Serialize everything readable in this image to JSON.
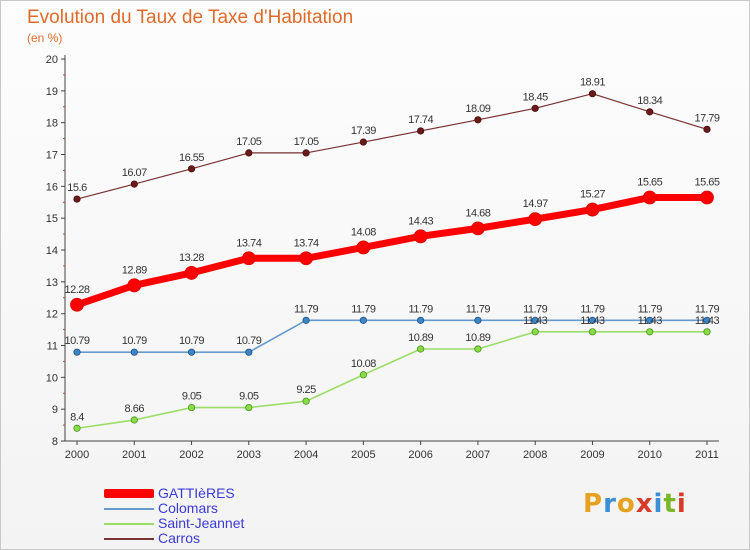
{
  "chart_data": {
    "type": "line",
    "title": "Evolution du Taux de Taxe d'Habitation",
    "subtitle": "(en %)",
    "xlabel": "",
    "ylabel": "",
    "categories": [
      "2000",
      "2001",
      "2002",
      "2003",
      "2004",
      "2005",
      "2006",
      "2007",
      "2008",
      "2009",
      "2010",
      "2011"
    ],
    "ylim": [
      8,
      20
    ],
    "yticks": [
      "8",
      "9",
      "10",
      "11",
      "12",
      "13",
      "14",
      "15",
      "16",
      "17",
      "18",
      "19",
      "20"
    ],
    "grid": false,
    "legend_position": "bottom-left",
    "series": [
      {
        "name": "GATTIèRES",
        "color": "#ff0000",
        "values": [
          12.28,
          12.89,
          13.28,
          13.74,
          13.74,
          14.08,
          14.43,
          14.68,
          14.97,
          15.27,
          15.65,
          15.65
        ],
        "labels": [
          "12.28",
          "12.89",
          "13.28",
          "13.74",
          "13.74",
          "14.08",
          "14.43",
          "14.68",
          "14.97",
          "15.27",
          "15.65",
          "15.65"
        ]
      },
      {
        "name": "Colomars",
        "color": "#6699cc",
        "values": [
          10.79,
          10.79,
          10.79,
          10.79,
          11.79,
          11.79,
          11.79,
          11.79,
          11.79,
          11.79,
          11.79,
          11.79
        ],
        "labels": [
          "10.79",
          "10.79",
          "10.79",
          "10.79",
          "11.79",
          "11.79",
          "11.79",
          "11.79",
          "11.79",
          "11.79",
          "11.79",
          "11.79"
        ]
      },
      {
        "name": "Saint-Jeannet",
        "color": "#99dd66",
        "values": [
          8.4,
          8.66,
          9.05,
          9.05,
          9.25,
          10.08,
          10.89,
          10.89,
          11.43,
          11.43,
          11.43,
          11.43
        ],
        "labels": [
          "8.4",
          "8.66",
          "9.05",
          "9.05",
          "9.25",
          "10.08",
          "10.89",
          "10.89",
          "11.43",
          "11.43",
          "11.43",
          "11.43"
        ]
      },
      {
        "name": "Carros",
        "color": "#7a3333",
        "values": [
          15.6,
          16.07,
          16.55,
          17.05,
          17.05,
          17.39,
          17.74,
          18.09,
          18.45,
          18.91,
          18.34,
          17.79
        ],
        "labels": [
          "15.6",
          "16.07",
          "16.55",
          "17.05",
          "17.05",
          "17.39",
          "17.74",
          "18.09",
          "18.45",
          "18.91",
          "18.34",
          "17.79"
        ]
      }
    ]
  },
  "logo": {
    "letters": [
      "P",
      "r",
      "o",
      "x",
      "i",
      "t",
      "i"
    ],
    "colors": [
      "#e8a020",
      "#3a8fd6",
      "#e8a020",
      "#d83a2a",
      "#3a8fd6",
      "#7ab82a",
      "#d83a2a"
    ]
  }
}
